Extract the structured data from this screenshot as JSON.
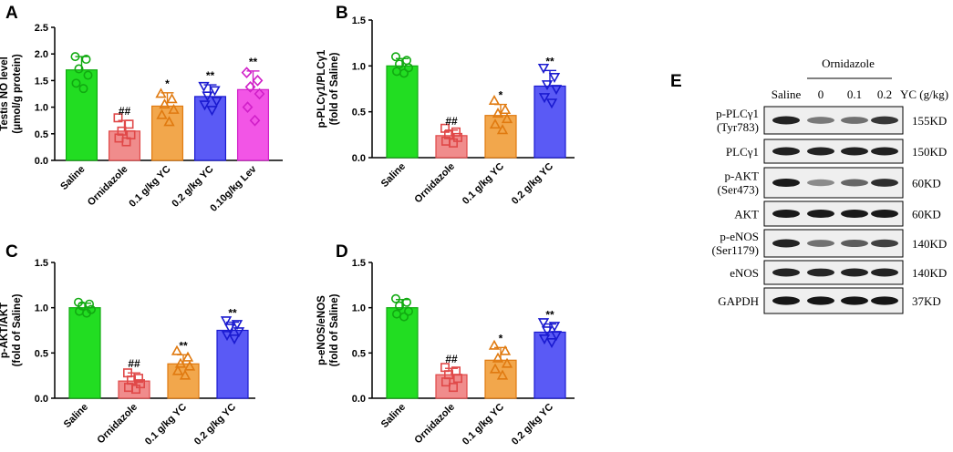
{
  "chart_data": [
    {
      "type": "bar",
      "panel": "A",
      "ylabel_line1": "Testis NO level",
      "ylabel_line2": "(μmol/g protein)",
      "ylim": [
        0,
        2.5
      ],
      "yticks": [
        "0.0",
        "0.5",
        "1.0",
        "1.5",
        "2.0",
        "2.5"
      ],
      "categories": [
        "Saline",
        "Ornidazole",
        "0.1 g/kg YC",
        "0.2 g/kg YC",
        "0.10g/kg Lev"
      ],
      "values": [
        1.7,
        0.55,
        1.02,
        1.2,
        1.33
      ],
      "errors": [
        0.25,
        0.2,
        0.25,
        0.22,
        0.35
      ],
      "significance": [
        "",
        "##",
        "*",
        "**",
        "**"
      ],
      "points": [
        [
          1.95,
          1.9,
          1.72,
          1.6,
          1.45,
          1.35
        ],
        [
          0.8,
          0.68,
          0.55,
          0.48,
          0.42,
          0.35
        ],
        [
          1.25,
          1.15,
          1.05,
          0.95,
          0.85,
          0.72
        ],
        [
          1.4,
          1.32,
          1.22,
          1.12,
          1.05,
          0.95
        ],
        [
          1.65,
          1.5,
          1.38,
          1.25,
          1.0,
          0.75
        ]
      ]
    },
    {
      "type": "bar",
      "panel": "B",
      "ylabel_line1": "p-PLCγ1/PLCγ1",
      "ylabel_line2": "(fold of Saline)",
      "ylim": [
        0,
        1.5
      ],
      "yticks": [
        "0.0",
        "0.5",
        "1.0",
        "1.5"
      ],
      "categories": [
        "Saline",
        "Ornidazole",
        "0.1 g/kg YC",
        "0.2 g/kg YC"
      ],
      "values": [
        1.0,
        0.24,
        0.46,
        0.78
      ],
      "errors": [
        0.08,
        0.06,
        0.12,
        0.17
      ],
      "significance": [
        "",
        "##",
        "*",
        "**"
      ],
      "points": [
        [
          1.1,
          1.06,
          1.02,
          0.98,
          0.94,
          0.92
        ],
        [
          0.32,
          0.28,
          0.25,
          0.22,
          0.18,
          0.16
        ],
        [
          0.62,
          0.52,
          0.48,
          0.42,
          0.36,
          0.3
        ],
        [
          0.98,
          0.88,
          0.8,
          0.75,
          0.66,
          0.6
        ]
      ]
    },
    {
      "type": "bar",
      "panel": "C",
      "ylabel_line1": "p-AKT/AKT",
      "ylabel_line2": "(fold of Saline)",
      "ylim": [
        0,
        1.5
      ],
      "yticks": [
        "0.0",
        "0.5",
        "1.0",
        "1.5"
      ],
      "categories": [
        "Saline",
        "Ornidazole",
        "0.1 g/kg YC",
        "0.2 g/kg YC"
      ],
      "values": [
        1.0,
        0.19,
        0.38,
        0.75
      ],
      "errors": [
        0.05,
        0.09,
        0.1,
        0.09
      ],
      "significance": [
        "",
        "##",
        "**",
        "**"
      ],
      "points": [
        [
          1.06,
          1.04,
          1.02,
          0.98,
          0.96,
          0.94
        ],
        [
          0.28,
          0.22,
          0.2,
          0.16,
          0.12,
          0.1
        ],
        [
          0.52,
          0.45,
          0.38,
          0.35,
          0.3,
          0.25
        ],
        [
          0.86,
          0.82,
          0.78,
          0.74,
          0.7,
          0.66
        ]
      ]
    },
    {
      "type": "bar",
      "panel": "D",
      "ylabel_line1": "p-eNOS/eNOS",
      "ylabel_line2": "(fold of Saline)",
      "ylim": [
        0,
        1.5
      ],
      "yticks": [
        "0.0",
        "0.5",
        "1.0",
        "1.5"
      ],
      "categories": [
        "Saline",
        "Ornidazole",
        "0.1 g/kg YC",
        "0.2 g/kg YC"
      ],
      "values": [
        1.0,
        0.26,
        0.42,
        0.73
      ],
      "errors": [
        0.09,
        0.07,
        0.14,
        0.09
      ],
      "significance": [
        "",
        "##",
        "*",
        "**"
      ],
      "points": [
        [
          1.1,
          1.06,
          1.02,
          0.96,
          0.93,
          0.9
        ],
        [
          0.34,
          0.3,
          0.26,
          0.22,
          0.18,
          0.12
        ],
        [
          0.58,
          0.52,
          0.44,
          0.38,
          0.32,
          0.25
        ],
        [
          0.84,
          0.8,
          0.75,
          0.7,
          0.66,
          0.62
        ]
      ]
    }
  ],
  "panel_labels": [
    "A",
    "B",
    "C",
    "D",
    "E"
  ],
  "colors": {
    "groups": [
      "#22dd22",
      "#f08c8c",
      "#f2a74c",
      "#5a5af5",
      "#f255e6"
    ],
    "edges": [
      "#11aa11",
      "#e04848",
      "#e07a10",
      "#1a1ad0",
      "#d020c8"
    ],
    "markers": [
      "circle",
      "square",
      "triangle-up",
      "triangle-down",
      "diamond"
    ]
  },
  "western_blot": {
    "panel": "E",
    "treatment_label": "Ornidazole",
    "lanes": [
      "Saline",
      "0",
      "0.1",
      "0.2",
      "YC (g/kg)"
    ],
    "rows": [
      {
        "label1": "p-PLCγ1",
        "label2": "(Tyr783)",
        "size": "155KD",
        "intensities": [
          0.9,
          0.45,
          0.5,
          0.8
        ]
      },
      {
        "label1": "PLCγ1",
        "label2": "",
        "size": "150KD",
        "intensities": [
          0.92,
          0.9,
          0.92,
          0.92
        ]
      },
      {
        "label1": "p-AKT",
        "label2": "(Ser473)",
        "size": "60KD",
        "intensities": [
          0.95,
          0.35,
          0.55,
          0.85
        ]
      },
      {
        "label1": "AKT",
        "label2": "",
        "size": "60KD",
        "intensities": [
          0.95,
          0.95,
          0.95,
          0.95
        ]
      },
      {
        "label1": "p-eNOS",
        "label2": "(Ser1179)",
        "size": "140KD",
        "intensities": [
          0.9,
          0.5,
          0.6,
          0.75
        ]
      },
      {
        "label1": "eNOS",
        "label2": "",
        "size": "140KD",
        "intensities": [
          0.9,
          0.88,
          0.9,
          0.9
        ]
      },
      {
        "label1": "GAPDH",
        "label2": "",
        "size": "37KD",
        "intensities": [
          0.98,
          0.98,
          0.98,
          0.98
        ]
      }
    ]
  }
}
